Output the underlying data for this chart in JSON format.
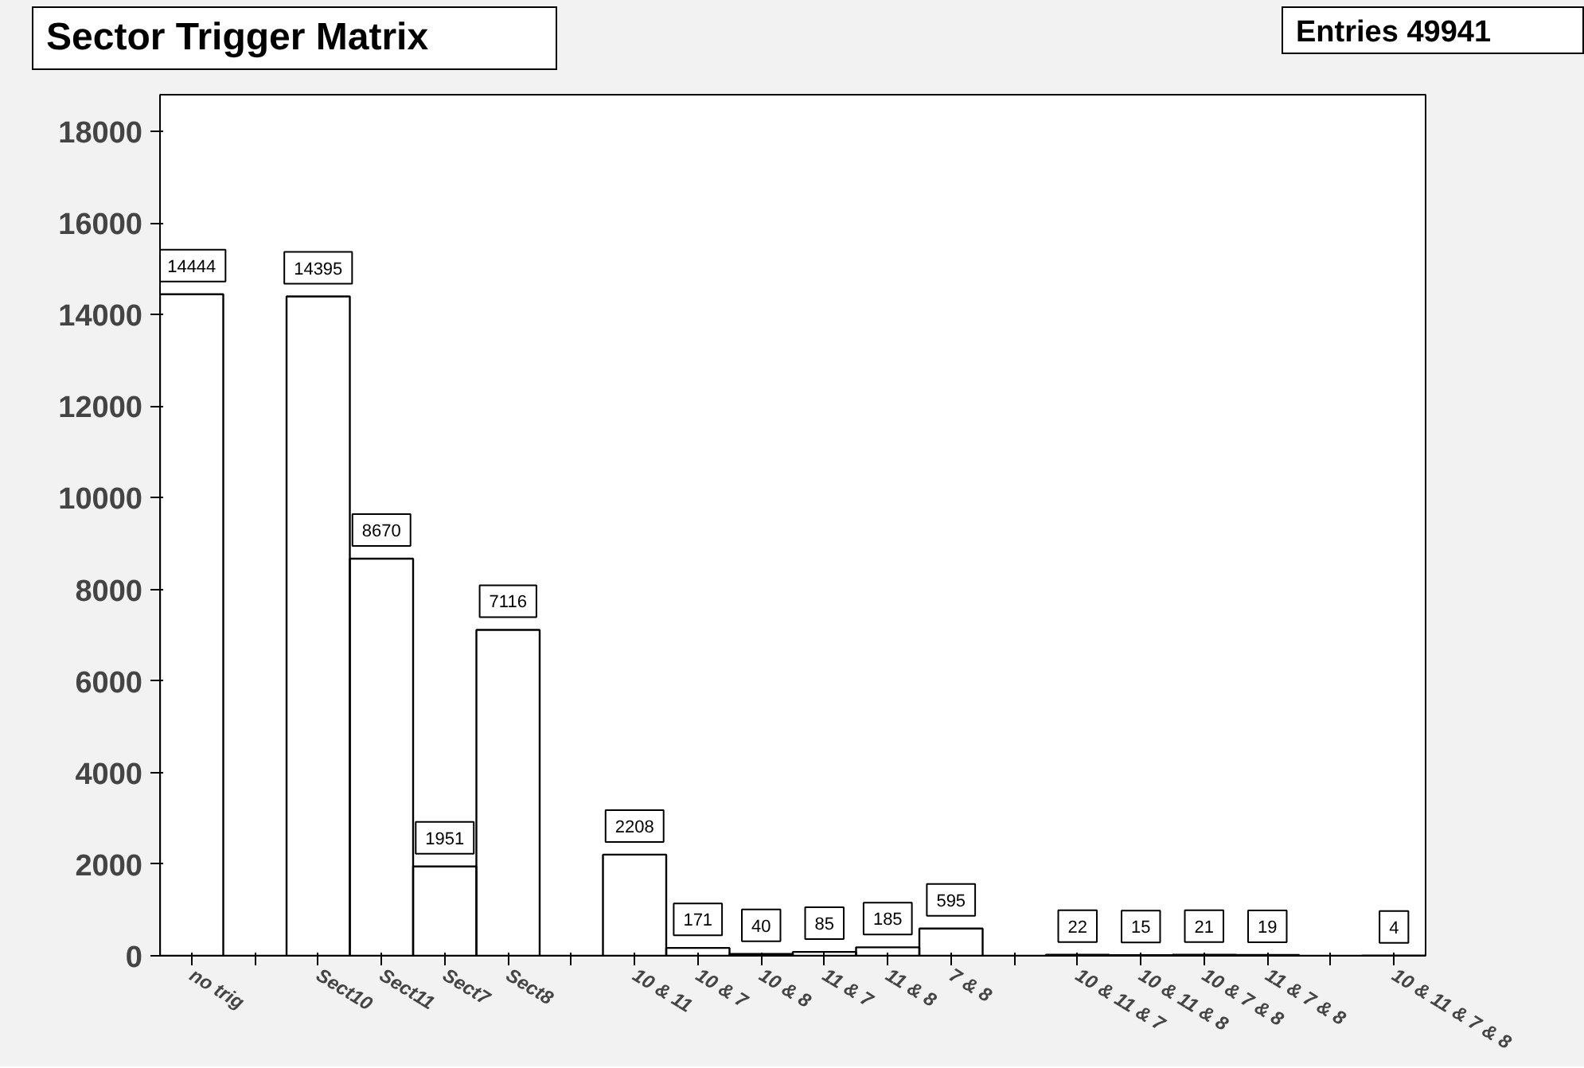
{
  "chart_data": {
    "type": "bar",
    "title": "Sector Trigger Matrix",
    "annotations": [
      "Entries 49941"
    ],
    "categories": [
      "no trig",
      null,
      "Sect10",
      "Sect11",
      "Sect7",
      "Sect8",
      null,
      "10 & 11",
      "10 & 7",
      "10 & 8",
      "11 & 7",
      "11 & 8",
      "7 & 8",
      null,
      "10 & 11 & 7",
      "10 & 11 & 8",
      "10 & 7 & 8",
      "11 & 7 & 8",
      null,
      "10 & 11 & 7 & 8"
    ],
    "values": [
      14444,
      0,
      14395,
      8670,
      1951,
      7116,
      0,
      2208,
      171,
      40,
      85,
      185,
      595,
      0,
      22,
      15,
      21,
      19,
      0,
      4
    ],
    "value_labels": [
      "14444",
      null,
      "14395",
      "8670",
      "1951",
      "7116",
      null,
      "2208",
      "171",
      "40",
      "85",
      "185",
      "595",
      null,
      "22",
      "15",
      "21",
      "19",
      null,
      "4"
    ],
    "color": "#000000",
    "ylim": [
      0,
      18800
    ],
    "yticks": [
      0,
      2000,
      4000,
      6000,
      8000,
      10000,
      12000,
      14000,
      16000,
      18000
    ],
    "grid": false
  }
}
